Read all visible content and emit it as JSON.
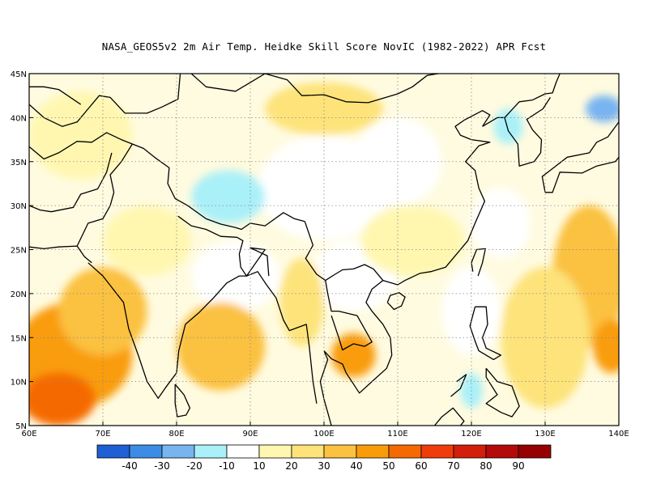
{
  "title": "NASA_GEOS5v2  2m Air Temp. Heidke Skill Score NovIC (1982-2022) APR Fcst",
  "map": {
    "lon_range": [
      60,
      140
    ],
    "lat_range": [
      5,
      45
    ],
    "lon_ticks": [
      {
        "value": 60,
        "label": "60E"
      },
      {
        "value": 70,
        "label": "70E"
      },
      {
        "value": 80,
        "label": "80E"
      },
      {
        "value": 90,
        "label": "90E"
      },
      {
        "value": 100,
        "label": "100E"
      },
      {
        "value": 110,
        "label": "110E"
      },
      {
        "value": 120,
        "label": "120E"
      },
      {
        "value": 130,
        "label": "130E"
      },
      {
        "value": 140,
        "label": "140E"
      }
    ],
    "lat_ticks": [
      {
        "value": 5,
        "label": "5N"
      },
      {
        "value": 10,
        "label": "10N"
      },
      {
        "value": 15,
        "label": "15N"
      },
      {
        "value": 20,
        "label": "20N"
      },
      {
        "value": 25,
        "label": "25N"
      },
      {
        "value": 30,
        "label": "30N"
      },
      {
        "value": 35,
        "label": "35N"
      },
      {
        "value": 40,
        "label": "40N"
      },
      {
        "value": 45,
        "label": "45N"
      }
    ]
  },
  "colorbar": {
    "colors": [
      "#1f5fd6",
      "#3c8ce6",
      "#78b4f0",
      "#aaf0f8",
      "#ffffff",
      "#fff7b0",
      "#fde37a",
      "#fbc13f",
      "#f99c0a",
      "#f56a00",
      "#f03c0a",
      "#d21e0a",
      "#b40a0a",
      "#960000"
    ],
    "labels": [
      "-40",
      "-30",
      "-20",
      "-10",
      "10",
      "20",
      "30",
      "40",
      "50",
      "60",
      "70",
      "80",
      "90"
    ]
  },
  "regions": [
    {
      "name": "arabian-sea-warm",
      "lon": 66,
      "lat": 13,
      "rlon": 8,
      "rlat": 6,
      "level": "#f99c0a"
    },
    {
      "name": "arabian-sea-hot",
      "lon": 64,
      "lat": 8,
      "rlon": 5,
      "rlat": 3,
      "level": "#f56a00"
    },
    {
      "name": "arabian-sea-mid",
      "lon": 70,
      "lat": 18,
      "rlon": 6,
      "rlat": 5,
      "level": "#fbc13f"
    },
    {
      "name": "bay-of-bengal",
      "lon": 86,
      "lat": 14,
      "rlon": 6,
      "rlat": 5,
      "level": "#fbc13f"
    },
    {
      "name": "indochina",
      "lon": 104,
      "lat": 13,
      "rlon": 3,
      "rlat": 2.5,
      "level": "#f99c0a"
    },
    {
      "name": "myanmar",
      "lon": 97,
      "lat": 19,
      "rlon": 3,
      "rlat": 5,
      "level": "#fde37a"
    },
    {
      "name": "pacific-east",
      "lon": 136,
      "lat": 22,
      "rlon": 5,
      "rlat": 8,
      "level": "#fbc13f"
    },
    {
      "name": "pacific-east-hot",
      "lon": 139,
      "lat": 14,
      "rlon": 2.5,
      "rlat": 3,
      "level": "#f99c0a"
    },
    {
      "name": "pacific-mid",
      "lon": 130,
      "lat": 15,
      "rlon": 6,
      "rlat": 8,
      "level": "#fde37a"
    },
    {
      "name": "tibet-cold",
      "lon": 87,
      "lat": 31,
      "rlon": 2.5,
      "rlat": 1.5,
      "level": "#3c8ce6"
    },
    {
      "name": "tibet-cool",
      "lon": 87,
      "lat": 31,
      "rlon": 5,
      "rlat": 3,
      "level": "#aaf0f8"
    },
    {
      "name": "korea-cool",
      "lon": 125,
      "lat": 39,
      "rlon": 2,
      "rlat": 2,
      "level": "#aaf0f8"
    },
    {
      "name": "japan-sea-cool",
      "lon": 138,
      "lat": 41,
      "rlon": 2.5,
      "rlat": 1.5,
      "level": "#78b4f0"
    },
    {
      "name": "philippines-cool",
      "lon": 120,
      "lat": 9,
      "rlon": 1.5,
      "rlat": 2,
      "level": "#aaf0f8"
    },
    {
      "name": "mongolia-warm",
      "lon": 100,
      "lat": 41,
      "rlon": 8,
      "rlat": 3,
      "level": "#fde37a"
    },
    {
      "name": "central-asia-warm",
      "lon": 67,
      "lat": 38,
      "rlon": 7,
      "rlat": 5,
      "level": "#fff7b0"
    },
    {
      "name": "south-china-warm",
      "lon": 112,
      "lat": 26,
      "rlon": 7,
      "rlat": 4,
      "level": "#fff7b0"
    },
    {
      "name": "india-north",
      "lon": 76,
      "lat": 26,
      "rlon": 6,
      "rlat": 4,
      "level": "#fff7b0"
    }
  ]
}
